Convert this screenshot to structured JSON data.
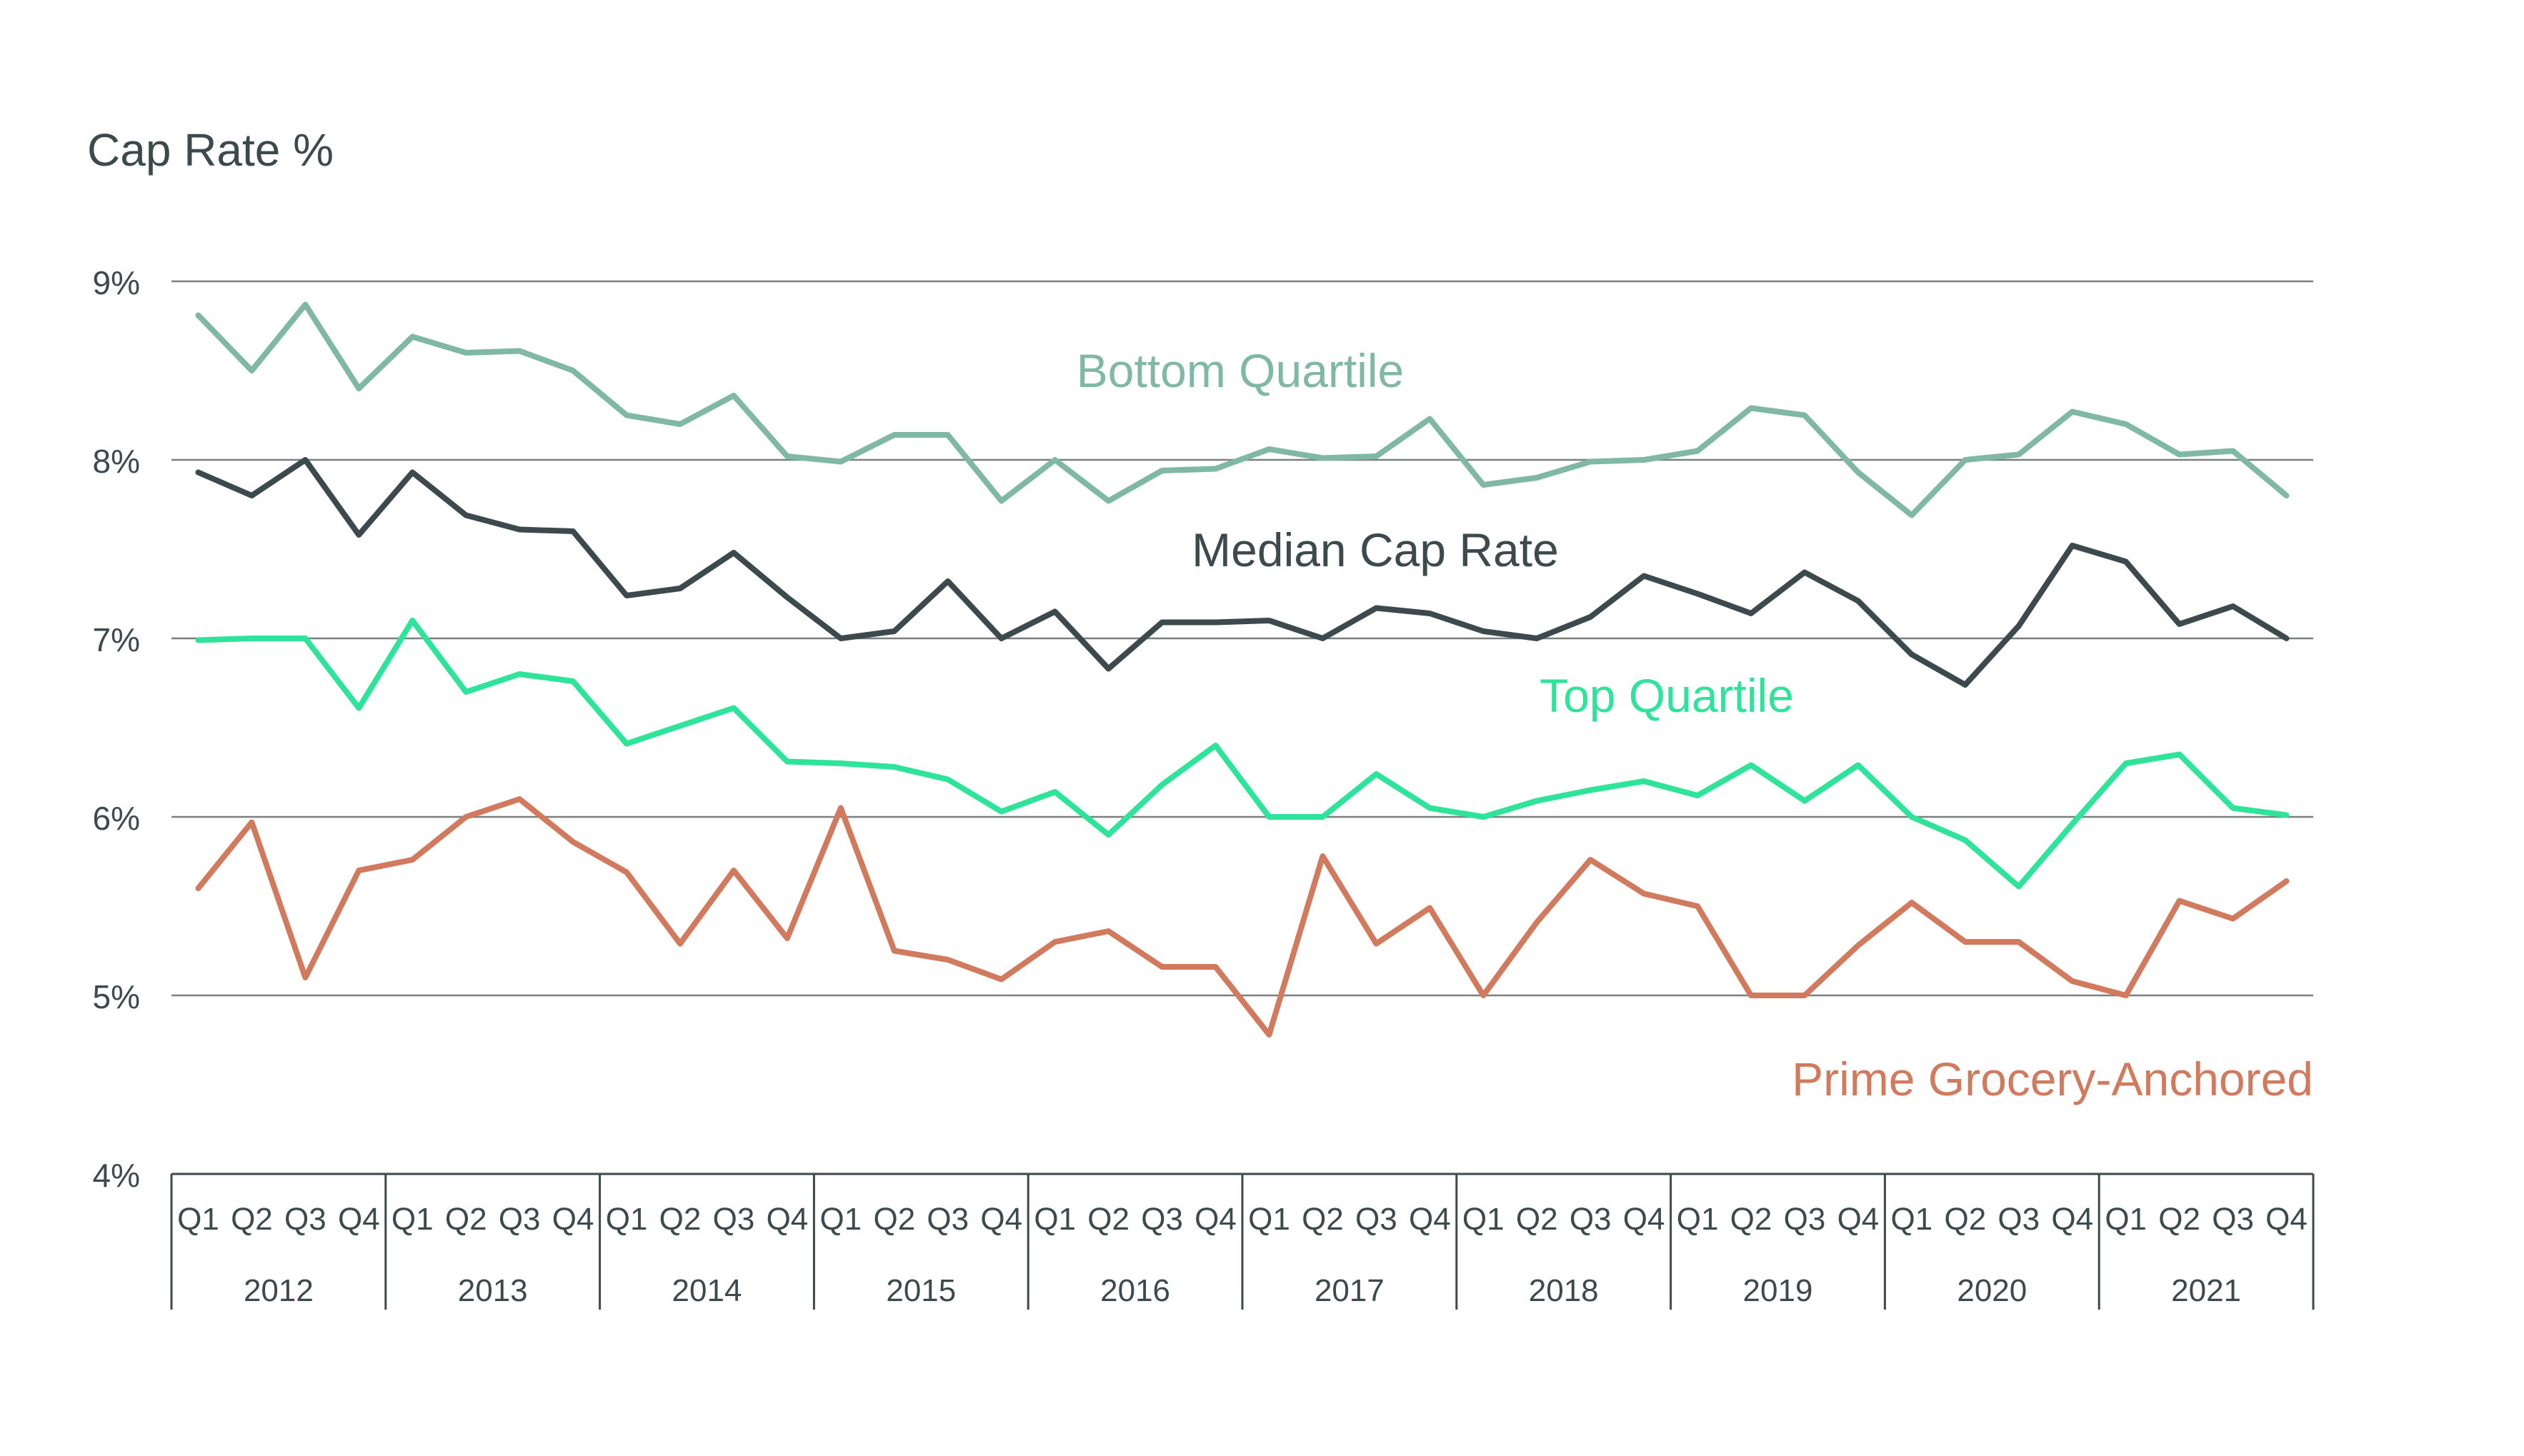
{
  "chart_data": {
    "type": "line",
    "ylabel": "Cap Rate %",
    "ylim": [
      4,
      9
    ],
    "yticks": [
      "4%",
      "5%",
      "6%",
      "7%",
      "8%",
      "9%"
    ],
    "quarters": [
      "Q1",
      "Q2",
      "Q3",
      "Q4"
    ],
    "years": [
      "2012",
      "2013",
      "2014",
      "2015",
      "2016",
      "2017",
      "2018",
      "2019",
      "2020",
      "2021"
    ],
    "grid": true,
    "series": [
      {
        "name": "Bottom Quartile",
        "color": "#7fb8a4",
        "values": [
          8.81,
          8.5,
          8.87,
          8.4,
          8.69,
          8.6,
          8.61,
          8.5,
          8.25,
          8.2,
          8.36,
          8.02,
          7.99,
          8.14,
          8.14,
          7.77,
          8.0,
          7.77,
          7.94,
          7.95,
          8.06,
          8.01,
          8.02,
          8.23,
          7.86,
          7.9,
          7.99,
          8.0,
          8.05,
          8.29,
          8.25,
          7.93,
          7.69,
          8.0,
          8.03,
          8.27,
          8.2,
          8.03,
          8.05,
          7.8
        ]
      },
      {
        "name": "Median Cap Rate",
        "color": "#3d4a4d",
        "values": [
          7.93,
          7.8,
          8.0,
          7.58,
          7.93,
          7.69,
          7.61,
          7.6,
          7.24,
          7.28,
          7.48,
          7.23,
          7.0,
          7.04,
          7.32,
          7.0,
          7.15,
          6.83,
          7.09,
          7.09,
          7.1,
          7.0,
          7.17,
          7.14,
          7.04,
          7.0,
          7.12,
          7.35,
          7.25,
          7.14,
          7.37,
          7.21,
          6.91,
          6.74,
          7.07,
          7.52,
          7.43,
          7.08,
          7.18,
          7.0
        ]
      },
      {
        "name": "Top Quartile",
        "color": "#2ee39a",
        "values": [
          6.99,
          7.0,
          7.0,
          6.61,
          7.1,
          6.7,
          6.8,
          6.76,
          6.41,
          6.51,
          6.61,
          6.31,
          6.3,
          6.28,
          6.21,
          6.03,
          6.14,
          5.9,
          6.18,
          6.4,
          6.0,
          6.0,
          6.24,
          6.05,
          6.0,
          6.09,
          6.15,
          6.2,
          6.12,
          6.29,
          6.09,
          6.29,
          6.0,
          5.87,
          5.61,
          5.96,
          6.3,
          6.35,
          6.05,
          6.01
        ]
      },
      {
        "name": "Prime Grocery-Anchored",
        "color": "#d27a5e",
        "values": [
          5.6,
          5.97,
          5.1,
          5.7,
          5.76,
          6.0,
          6.1,
          5.86,
          5.69,
          5.29,
          5.7,
          5.32,
          6.05,
          5.25,
          5.2,
          5.09,
          5.3,
          5.36,
          5.16,
          5.16,
          4.78,
          5.78,
          5.29,
          5.49,
          5.0,
          5.41,
          5.76,
          5.57,
          5.5,
          5.0,
          5.0,
          5.28,
          5.52,
          5.3,
          5.3,
          5.08,
          5.0,
          5.53,
          5.43,
          5.64
        ]
      }
    ]
  }
}
